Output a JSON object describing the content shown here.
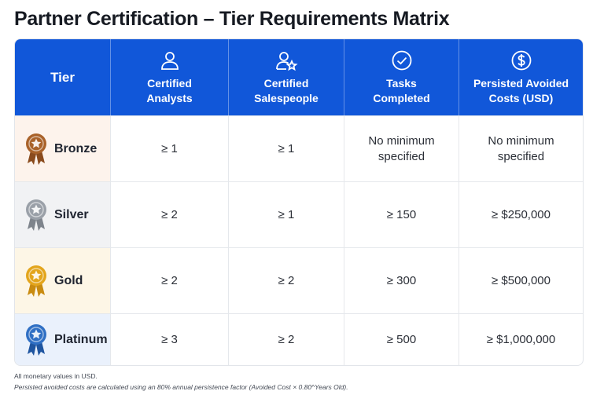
{
  "title": "Partner Certification – Tier Requirements Matrix",
  "header": {
    "tier": "Tier",
    "analysts": "Certified\nAnalysts",
    "salespeople": "Certified\nSalespeople",
    "tasks": "Tasks\nCompleted",
    "costs": "Persisted Avoided\nCosts (USD)"
  },
  "rows": [
    {
      "tier": "Bronze",
      "analysts": "≥ 1",
      "salespeople": "≥ 1",
      "tasks": "No minimum\nspecified",
      "costs": "No minimum\nspecified",
      "bg": "#fdf3ec",
      "medal": "#a9622a",
      "ribbon": "#8a4b1e"
    },
    {
      "tier": "Silver",
      "analysts": "≥ 2",
      "salespeople": "≥ 1",
      "tasks": "≥ 150",
      "costs": "≥ $250,000",
      "bg": "#f1f2f4",
      "medal": "#9aa0a8",
      "ribbon": "#7e848c"
    },
    {
      "tier": "Gold",
      "analysts": "≥ 2",
      "salespeople": "≥ 2",
      "tasks": "≥ 300",
      "costs": "≥ $500,000",
      "bg": "#fdf6e6",
      "medal": "#e3a51c",
      "ribbon": "#c98b10"
    },
    {
      "tier": "Platinum",
      "analysts": "≥ 3",
      "salespeople": "≥ 2",
      "tasks": "≥ 500",
      "costs": "≥ $1,000,000",
      "bg": "#eaf1fc",
      "medal": "#2f6fc4",
      "ribbon": "#1f55a0"
    }
  ],
  "notes": {
    "line1": "All monetary values in USD.",
    "line2": "Persisted avoided costs are calculated using an 80% annual persistence factor (Avoided Cost × 0.80^Years Old)."
  },
  "colors": {
    "header_bg": "#1157d9"
  }
}
